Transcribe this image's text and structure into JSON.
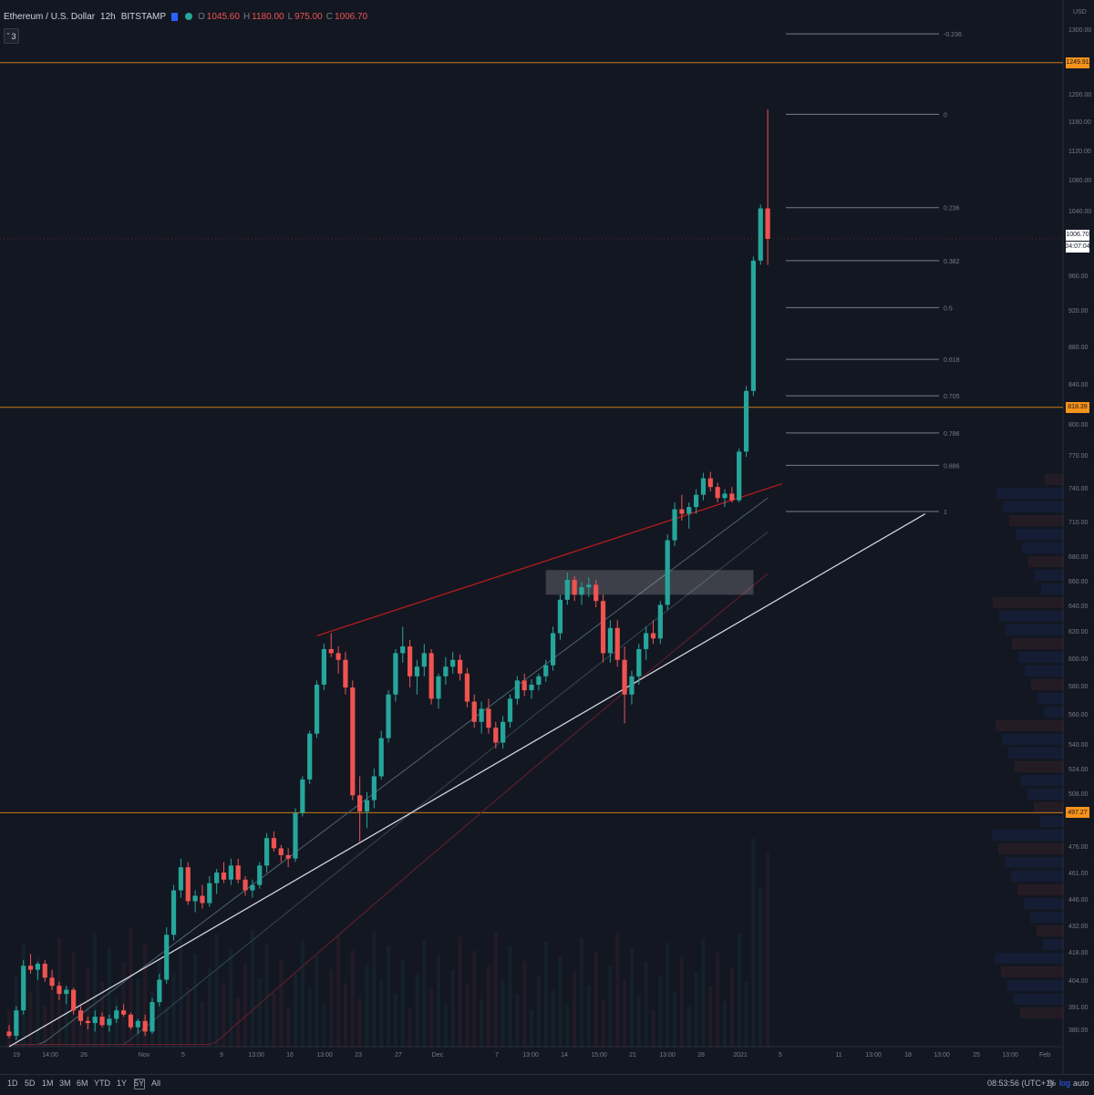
{
  "symbol": {
    "name": "Ethereum / U.S. Dollar",
    "interval": "12h",
    "exchange": "BITSTAMP",
    "ohlc": [
      {
        "k": "O",
        "v": "1045.60"
      },
      {
        "k": "H",
        "v": "1180.00"
      },
      {
        "k": "L",
        "v": "975.00"
      },
      {
        "k": "C",
        "v": "1006.70"
      }
    ]
  },
  "indicator_toggle": {
    "label": "3"
  },
  "price_axis": {
    "currency": "USD",
    "ticks": [
      "1300.00",
      "1200.00",
      "1160.00",
      "1120.00",
      "1080.00",
      "1040.00",
      "960.00",
      "920.00",
      "880.00",
      "840.00",
      "800.00",
      "770.00",
      "740.00",
      "710.00",
      "680.00",
      "660.00",
      "640.00",
      "620.00",
      "600.00",
      "580.00",
      "560.00",
      "540.00",
      "524.00",
      "508.00",
      "476.00",
      "461.00",
      "446.00",
      "432.00",
      "418.00",
      "404.00",
      "391.00",
      "380.00"
    ],
    "last_price": "1006.70",
    "countdown": "04:07:04"
  },
  "horizontal_levels": [
    {
      "price": 1249.91,
      "label": "1249.91"
    },
    {
      "price": 818.39,
      "label": "818.39"
    },
    {
      "price": 497.27,
      "label": "497.27"
    }
  ],
  "fib_levels": [
    {
      "price": 1295,
      "label": "-0.236"
    },
    {
      "price": 1173,
      "label": "0"
    },
    {
      "price": 1046,
      "label": "0.236"
    },
    {
      "price": 980,
      "label": "0.382"
    },
    {
      "price": 925,
      "label": "0.5"
    },
    {
      "price": 868,
      "label": "0.618"
    },
    {
      "price": 830,
      "label": "0.705"
    },
    {
      "price": 793,
      "label": "0.786"
    },
    {
      "price": 762,
      "label": "0.886"
    },
    {
      "price": 720,
      "label": "1"
    }
  ],
  "time_axis": {
    "ticks": [
      "19",
      "14:00",
      "26",
      "Nov",
      "5",
      "9",
      "13:00",
      "16",
      "13:00",
      "23",
      "27",
      "Dec",
      "7",
      "13:00",
      "14",
      "15:00",
      "21",
      "13:00",
      "28",
      "2021",
      "5",
      "11",
      "13:00",
      "18",
      "13:00",
      "25",
      "13:00",
      "Feb"
    ]
  },
  "bottom_toolbar": {
    "timeframes": [
      "1D",
      "5D",
      "1M",
      "3M",
      "6M",
      "YTD",
      "1Y",
      "5Y",
      "All"
    ],
    "clock": "08:53:56 (UTC+1)",
    "percent": "%",
    "log": "log",
    "auto": "auto"
  },
  "chart_data": {
    "type": "candlestick",
    "y_axis": {
      "scale": "log",
      "ylim": [
        373,
        1350
      ]
    },
    "colors": {
      "up": "#26a69a",
      "down": "#ef5350",
      "background": "#131722",
      "level": "#f7931a",
      "trend": "#d1d4dc",
      "channel": "#b71c1c"
    },
    "candles": [
      [
        380,
        383,
        377,
        378
      ],
      [
        378,
        392,
        376,
        390
      ],
      [
        390,
        415,
        388,
        412
      ],
      [
        412,
        418,
        408,
        410
      ],
      [
        410,
        414,
        405,
        413
      ],
      [
        413,
        415,
        404,
        406
      ],
      [
        406,
        410,
        400,
        402
      ],
      [
        402,
        404,
        395,
        398
      ],
      [
        398,
        402,
        393,
        400
      ],
      [
        400,
        401,
        388,
        390
      ],
      [
        390,
        392,
        383,
        385
      ],
      [
        385,
        387,
        381,
        384
      ],
      [
        384,
        390,
        380,
        387
      ],
      [
        387,
        389,
        382,
        383
      ],
      [
        383,
        388,
        380,
        386
      ],
      [
        386,
        392,
        384,
        390
      ],
      [
        390,
        393,
        387,
        388
      ],
      [
        388,
        389,
        381,
        382
      ],
      [
        382,
        386,
        379,
        385
      ],
      [
        385,
        388,
        378,
        380
      ],
      [
        380,
        396,
        379,
        394
      ],
      [
        394,
        408,
        392,
        405
      ],
      [
        405,
        432,
        403,
        428
      ],
      [
        428,
        455,
        425,
        452
      ],
      [
        452,
        470,
        448,
        465
      ],
      [
        465,
        468,
        444,
        446
      ],
      [
        446,
        452,
        440,
        449
      ],
      [
        449,
        455,
        442,
        445
      ],
      [
        445,
        460,
        443,
        456
      ],
      [
        456,
        464,
        450,
        462
      ],
      [
        462,
        468,
        456,
        458
      ],
      [
        458,
        470,
        455,
        466
      ],
      [
        466,
        470,
        456,
        458
      ],
      [
        458,
        460,
        449,
        452
      ],
      [
        452,
        458,
        448,
        455
      ],
      [
        455,
        468,
        453,
        466
      ],
      [
        466,
        485,
        462,
        482
      ],
      [
        482,
        486,
        474,
        476
      ],
      [
        476,
        478,
        468,
        472
      ],
      [
        472,
        476,
        465,
        470
      ],
      [
        470,
        500,
        468,
        497
      ],
      [
        497,
        520,
        495,
        518
      ],
      [
        518,
        550,
        515,
        548
      ],
      [
        548,
        585,
        545,
        582
      ],
      [
        582,
        612,
        578,
        608
      ],
      [
        608,
        620,
        602,
        605
      ],
      [
        605,
        610,
        590,
        600
      ],
      [
        600,
        606,
        575,
        580
      ],
      [
        580,
        585,
        505,
        508
      ],
      [
        508,
        520,
        480,
        498
      ],
      [
        498,
        510,
        488,
        505
      ],
      [
        505,
        525,
        500,
        520
      ],
      [
        520,
        550,
        518,
        545
      ],
      [
        545,
        578,
        542,
        575
      ],
      [
        575,
        608,
        570,
        605
      ],
      [
        605,
        625,
        598,
        610
      ],
      [
        610,
        615,
        580,
        588
      ],
      [
        588,
        600,
        575,
        595
      ],
      [
        595,
        612,
        588,
        605
      ],
      [
        605,
        608,
        568,
        572
      ],
      [
        572,
        590,
        565,
        588
      ],
      [
        588,
        602,
        582,
        595
      ],
      [
        595,
        606,
        590,
        600
      ],
      [
        600,
        604,
        585,
        590
      ],
      [
        590,
        594,
        566,
        570
      ],
      [
        570,
        575,
        552,
        556
      ],
      [
        556,
        570,
        548,
        565
      ],
      [
        565,
        572,
        548,
        552
      ],
      [
        552,
        556,
        538,
        542
      ],
      [
        542,
        560,
        538,
        556
      ],
      [
        556,
        575,
        552,
        572
      ],
      [
        572,
        588,
        568,
        585
      ],
      [
        585,
        590,
        574,
        578
      ],
      [
        578,
        586,
        572,
        582
      ],
      [
        582,
        590,
        578,
        588
      ],
      [
        588,
        600,
        584,
        596
      ],
      [
        596,
        625,
        592,
        620
      ],
      [
        620,
        650,
        615,
        646
      ],
      [
        646,
        668,
        642,
        662
      ],
      [
        662,
        665,
        645,
        650
      ],
      [
        650,
        660,
        642,
        656
      ],
      [
        656,
        664,
        648,
        658
      ],
      [
        658,
        662,
        640,
        645
      ],
      [
        645,
        650,
        598,
        605
      ],
      [
        605,
        630,
        598,
        624
      ],
      [
        624,
        630,
        595,
        600
      ],
      [
        600,
        610,
        555,
        575
      ],
      [
        575,
        592,
        568,
        588
      ],
      [
        588,
        612,
        582,
        608
      ],
      [
        608,
        625,
        600,
        620
      ],
      [
        620,
        630,
        612,
        616
      ],
      [
        616,
        645,
        612,
        642
      ],
      [
        642,
        700,
        638,
        695
      ],
      [
        695,
        728,
        690,
        722
      ],
      [
        722,
        735,
        712,
        718
      ],
      [
        718,
        728,
        705,
        724
      ],
      [
        724,
        740,
        718,
        735
      ],
      [
        735,
        755,
        730,
        750
      ],
      [
        750,
        756,
        738,
        742
      ],
      [
        742,
        746,
        728,
        732
      ],
      [
        732,
        740,
        724,
        736
      ],
      [
        736,
        742,
        728,
        730
      ],
      [
        730,
        778,
        728,
        775
      ],
      [
        775,
        840,
        770,
        835
      ],
      [
        835,
        985,
        830,
        980
      ],
      [
        980,
        1050,
        975,
        1045
      ],
      [
        1045,
        1180,
        975,
        1006.7
      ]
    ],
    "trendline": {
      "from": [
        0,
        373
      ],
      "to": [
        128,
        718
      ]
    },
    "channel_line": {
      "from": [
        43,
        618
      ],
      "to": [
        108,
        745
      ]
    },
    "rect_zone": {
      "x0": 75,
      "x1": 104,
      "y0": 650,
      "y1": 670
    }
  }
}
